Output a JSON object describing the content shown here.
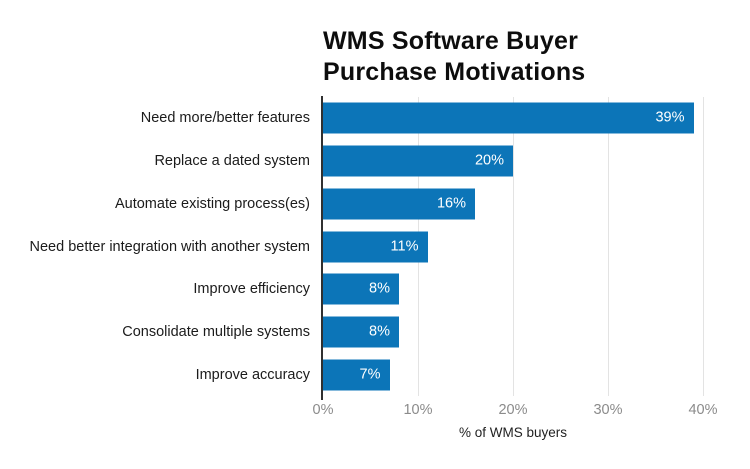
{
  "chart_data": {
    "type": "bar",
    "orientation": "horizontal",
    "title": "WMS Software Buyer Purchase Motivations",
    "title_lines": [
      "WMS Software Buyer",
      "Purchase Motivations"
    ],
    "xlabel": "% of WMS buyers",
    "xlim": [
      0,
      40
    ],
    "grid": "vertical-gridlines-at-ticks",
    "legend": "none",
    "categories": [
      "Need more/better features",
      "Replace a dated system",
      "Automate existing process(es)",
      "Need better integration with another system",
      "Improve efficiency",
      "Consolidate multiple systems",
      "Improve accuracy"
    ],
    "values": [
      39,
      20,
      16,
      11,
      8,
      8,
      7
    ],
    "value_labels": [
      "39%",
      "20%",
      "16%",
      "11%",
      "8%",
      "8%",
      "7%"
    ],
    "x_ticks": [
      {
        "value": 0,
        "label": "0%"
      },
      {
        "value": 10,
        "label": "10%"
      },
      {
        "value": 20,
        "label": "20%"
      },
      {
        "value": 30,
        "label": "30%"
      },
      {
        "value": 40,
        "label": "40%"
      }
    ],
    "colors": {
      "bar": "#0c75b8",
      "value_label": "#ffffff",
      "grid": "#e3e3e3",
      "axis": "#303030",
      "tick_label": "#8b8b8b",
      "category_label": "#1b1b1b",
      "title": "#0d0d0d",
      "x_axis_label": "#222222",
      "background": "#ffffff"
    }
  }
}
